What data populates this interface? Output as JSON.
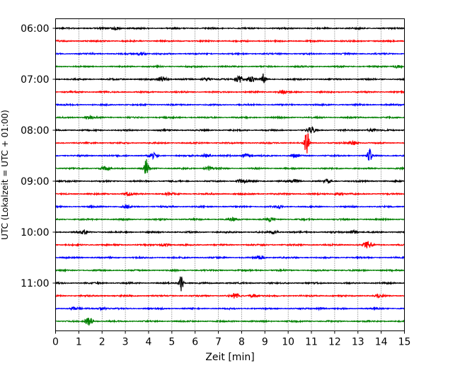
{
  "chart_data": {
    "type": "line",
    "xlabel": "Zeit  [min]",
    "ylabel": "UTC (Lokalzeit = UTC + 01:00)",
    "xlim": [
      0,
      15
    ],
    "x_ticks": [
      "0",
      "1",
      "2",
      "3",
      "4",
      "5",
      "6",
      "7",
      "8",
      "9",
      "10",
      "11",
      "12",
      "13",
      "14",
      "15"
    ],
    "y_ticks": [
      "06:00",
      "07:00",
      "08:00",
      "09:00",
      "10:00",
      "11:00"
    ],
    "grid": "vertical dotted",
    "trace_colors": [
      "#000000",
      "#ff0000",
      "#0000ff",
      "#008000"
    ],
    "trace_interval_min": 15,
    "traces": [
      {
        "start": "06:00",
        "color": "#000000",
        "events": [
          {
            "t": 2.6,
            "a": 0.4
          }
        ]
      },
      {
        "start": "06:15",
        "color": "#ff0000",
        "events": []
      },
      {
        "start": "06:30",
        "color": "#0000ff",
        "events": [
          {
            "t": 3.7,
            "a": 0.5
          }
        ]
      },
      {
        "start": "06:45",
        "color": "#008000",
        "events": [
          {
            "t": 14.7,
            "a": 0.4
          }
        ]
      },
      {
        "start": "07:00",
        "color": "#000000",
        "events": [
          {
            "t": 4.6,
            "a": 0.8
          },
          {
            "t": 6.5,
            "a": 0.5
          },
          {
            "t": 7.9,
            "a": 1.0
          },
          {
            "t": 8.4,
            "a": 0.8
          },
          {
            "t": 8.95,
            "a": 1.8
          }
        ]
      },
      {
        "start": "07:15",
        "color": "#ff0000",
        "events": [
          {
            "t": 9.7,
            "a": 0.6
          }
        ]
      },
      {
        "start": "07:30",
        "color": "#0000ff",
        "events": []
      },
      {
        "start": "07:45",
        "color": "#008000",
        "events": [
          {
            "t": 1.5,
            "a": 0.4
          }
        ]
      },
      {
        "start": "08:00",
        "color": "#000000",
        "events": [
          {
            "t": 11.0,
            "a": 1.0
          },
          {
            "t": 13.6,
            "a": 0.5
          }
        ]
      },
      {
        "start": "08:15",
        "color": "#ff0000",
        "events": [
          {
            "t": 10.8,
            "a": 4.5
          },
          {
            "t": 12.8,
            "a": 0.6
          }
        ]
      },
      {
        "start": "08:30",
        "color": "#0000ff",
        "events": [
          {
            "t": 4.2,
            "a": 0.8
          },
          {
            "t": 6.5,
            "a": 0.6
          },
          {
            "t": 8.2,
            "a": 0.6
          },
          {
            "t": 10.3,
            "a": 0.5
          },
          {
            "t": 13.5,
            "a": 2.4
          }
        ]
      },
      {
        "start": "08:45",
        "color": "#008000",
        "events": [
          {
            "t": 2.1,
            "a": 0.5
          },
          {
            "t": 3.9,
            "a": 3.0
          },
          {
            "t": 6.6,
            "a": 0.6
          }
        ]
      },
      {
        "start": "09:00",
        "color": "#000000",
        "events": [
          {
            "t": 8.0,
            "a": 0.6
          },
          {
            "t": 10.3,
            "a": 0.6
          },
          {
            "t": 11.7,
            "a": 0.5
          }
        ]
      },
      {
        "start": "09:15",
        "color": "#ff0000",
        "events": [
          {
            "t": 3.1,
            "a": 0.6
          },
          {
            "t": 4.9,
            "a": 0.4
          },
          {
            "t": 12.2,
            "a": 0.4
          }
        ]
      },
      {
        "start": "09:30",
        "color": "#0000ff",
        "events": [
          {
            "t": 3.1,
            "a": 0.4
          },
          {
            "t": 9.6,
            "a": 0.4
          }
        ]
      },
      {
        "start": "09:45",
        "color": "#008000",
        "events": [
          {
            "t": 7.6,
            "a": 0.4
          },
          {
            "t": 9.2,
            "a": 0.5
          }
        ]
      },
      {
        "start": "10:00",
        "color": "#000000",
        "events": [
          {
            "t": 1.2,
            "a": 0.5
          },
          {
            "t": 9.4,
            "a": 0.5
          },
          {
            "t": 12.8,
            "a": 0.5
          }
        ]
      },
      {
        "start": "10:15",
        "color": "#ff0000",
        "events": [
          {
            "t": 4.7,
            "a": 0.4
          },
          {
            "t": 13.4,
            "a": 1.2
          }
        ]
      },
      {
        "start": "10:30",
        "color": "#0000ff",
        "events": [
          {
            "t": 8.8,
            "a": 0.5
          }
        ]
      },
      {
        "start": "10:45",
        "color": "#008000",
        "events": []
      },
      {
        "start": "11:00",
        "color": "#000000",
        "events": [
          {
            "t": 5.4,
            "a": 2.5
          }
        ]
      },
      {
        "start": "11:15",
        "color": "#ff0000",
        "events": [
          {
            "t": 7.7,
            "a": 0.8
          },
          {
            "t": 8.5,
            "a": 0.5
          },
          {
            "t": 13.9,
            "a": 0.4
          }
        ]
      },
      {
        "start": "11:30",
        "color": "#0000ff",
        "events": [
          {
            "t": 0.8,
            "a": 0.4
          },
          {
            "t": 2.0,
            "a": 0.4
          },
          {
            "t": 11.4,
            "a": 0.4
          }
        ]
      },
      {
        "start": "11:45",
        "color": "#008000",
        "events": [
          {
            "t": 1.45,
            "a": 1.2
          }
        ]
      }
    ]
  }
}
